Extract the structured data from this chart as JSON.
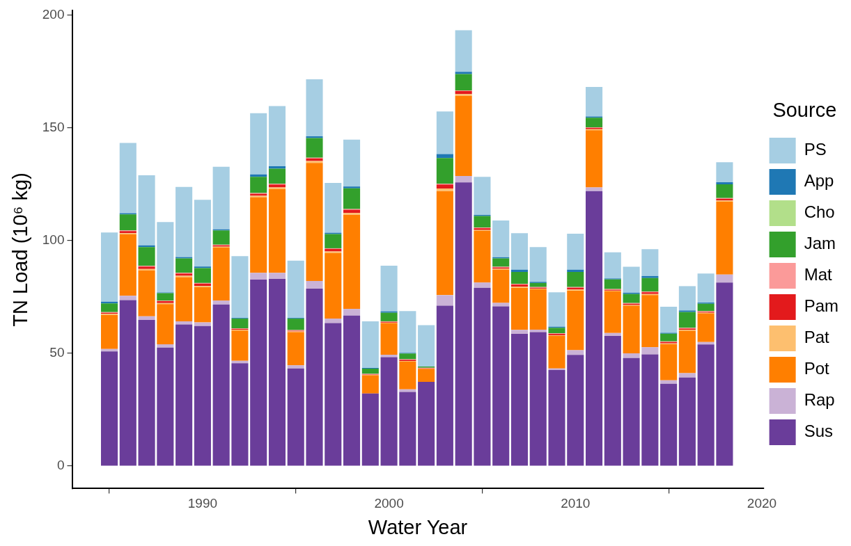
{
  "chart_data": {
    "type": "bar",
    "xlabel": "Water Year",
    "ylabel": "TN Load (10⁶ kg)",
    "legend_title": "Source",
    "legend": "right",
    "stacked": true,
    "x": [
      1985,
      1986,
      1987,
      1988,
      1989,
      1990,
      1991,
      1992,
      1993,
      1994,
      1995,
      1996,
      1997,
      1998,
      1999,
      2000,
      2001,
      2002,
      2003,
      2004,
      2005,
      2006,
      2007,
      2008,
      2009,
      2010,
      2011,
      2012,
      2013,
      2014,
      2015,
      2016,
      2017,
      2018
    ],
    "xlim": [
      1983,
      2020.1
    ],
    "xticks": [
      1990,
      2000,
      2010,
      2020
    ],
    "ylim": [
      -10,
      202
    ],
    "yticks": [
      0,
      50,
      100,
      150,
      200
    ],
    "series": [
      {
        "name": "Sus",
        "color": "#6a3d9a",
        "values": [
          50.8,
          73.6,
          64.8,
          52.5,
          62.8,
          62.1,
          71.7,
          45.6,
          82.7,
          83.0,
          43.3,
          78.7,
          63.4,
          66.7,
          32.2,
          48.3,
          32.9,
          37.3,
          71.1,
          125.8,
          79.1,
          70.8,
          58.6,
          59.4,
          42.6,
          49.3,
          122.0,
          57.7,
          47.9,
          49.5,
          36.5,
          39.3,
          53.9,
          81.4
        ]
      },
      {
        "name": "Rap",
        "color": "#cab2d6",
        "values": [
          1.1,
          1.9,
          1.6,
          1.5,
          1.4,
          1.6,
          1.7,
          1.1,
          3.0,
          2.7,
          1.4,
          3.4,
          2.0,
          3.0,
          null,
          1.1,
          1.1,
          null,
          4.7,
          2.9,
          2.3,
          1.6,
          1.8,
          1.1,
          0.7,
          2.1,
          1.6,
          1.3,
          2.1,
          3.2,
          1.5,
          1.9,
          1.1,
          3.5
        ]
      },
      {
        "name": "Pot",
        "color": "#ff7f00",
        "values": [
          15.1,
          27.3,
          20.4,
          17.8,
          19.6,
          15.7,
          23.5,
          13.4,
          33.6,
          37.2,
          14.7,
          52.4,
          29.1,
          41.8,
          8.1,
          14.0,
          12.3,
          5.8,
          46.2,
          35.5,
          22.9,
          14.8,
          18.7,
          17.9,
          14.4,
          26.4,
          25.4,
          18.5,
          21.1,
          23.1,
          16.1,
          18.8,
          12.7,
          32.4
        ]
      },
      {
        "name": "Pat",
        "color": "#fdbf6f",
        "values": [
          0.5,
          0.5,
          0.6,
          0.5,
          0.6,
          0.5,
          0.4,
          0.3,
          0.6,
          0.7,
          0.3,
          0.8,
          0.7,
          0.8,
          0.1,
          0.2,
          0.3,
          null,
          1.1,
          0.8,
          0.4,
          0.3,
          0.5,
          0.3,
          0.3,
          0.5,
          0.4,
          0.3,
          0.3,
          0.5,
          0.3,
          0.4,
          0.3,
          0.5
        ]
      },
      {
        "name": "Pam",
        "color": "#e31a1c",
        "values": [
          0.5,
          0.9,
          1.1,
          0.8,
          1.0,
          1.0,
          0.6,
          0.4,
          0.9,
          1.3,
          0.3,
          1.2,
          1.1,
          1.4,
          0.2,
          0.3,
          0.5,
          0.2,
          1.8,
          1.3,
          0.8,
          0.6,
          0.9,
          0.4,
          0.6,
          0.8,
          0.6,
          0.4,
          0.6,
          0.8,
          0.6,
          0.6,
          0.4,
          0.8
        ]
      },
      {
        "name": "Mat",
        "color": "#fb9a99",
        "values": [
          0.3,
          0.3,
          0.3,
          0.3,
          0.3,
          0.3,
          0.3,
          0.3,
          0.3,
          0.3,
          0.3,
          0.3,
          0.3,
          0.3,
          0.3,
          0.3,
          0.3,
          0.3,
          0.3,
          0.3,
          0.3,
          0.3,
          0.3,
          0.3,
          0.3,
          0.3,
          0.3,
          0.3,
          0.3,
          0.3,
          0.3,
          0.3,
          0.3,
          0.3
        ]
      },
      {
        "name": "Jam",
        "color": "#33a02c",
        "values": [
          3.8,
          7.1,
          8.3,
          3.3,
          6.4,
          6.6,
          6.3,
          4.3,
          7.2,
          6.7,
          5.1,
          8.7,
          6.3,
          9.2,
          2.3,
          3.8,
          2.5,
          0.5,
          11.4,
          7.3,
          5.1,
          3.7,
          5.3,
          1.8,
          2.4,
          6.7,
          4.2,
          4.3,
          4.0,
          6.0,
          3.4,
          7.0,
          3.3,
          6.1
        ]
      },
      {
        "name": "Cho",
        "color": "#b2df8a",
        "values": [
          null,
          null,
          null,
          null,
          null,
          null,
          null,
          null,
          null,
          null,
          null,
          null,
          null,
          null,
          null,
          null,
          null,
          null,
          null,
          null,
          null,
          null,
          null,
          null,
          null,
          null,
          null,
          null,
          null,
          null,
          null,
          null,
          null,
          null
        ]
      },
      {
        "name": "App",
        "color": "#1f78b4",
        "values": [
          0.8,
          0.6,
          0.8,
          0.3,
          0.6,
          0.7,
          0.5,
          0.3,
          1.1,
          1.1,
          0.3,
          0.8,
          0.6,
          0.8,
          0.3,
          0.6,
          0.3,
          null,
          1.8,
          1.0,
          0.5,
          0.5,
          1.0,
          0.5,
          0.5,
          1.0,
          0.6,
          0.4,
          0.6,
          0.9,
          0.4,
          0.7,
          0.5,
          0.9
        ]
      },
      {
        "name": "PS",
        "color": "#a6cee3",
        "values": [
          30.7,
          31.1,
          31.1,
          31.2,
          31.1,
          29.6,
          27.8,
          27.4,
          27.1,
          26.7,
          25.4,
          25.3,
          22.1,
          20.8,
          20.7,
          20.3,
          18.5,
          18.4,
          18.9,
          18.4,
          16.9,
          16.3,
          16.2,
          15.4,
          15.3,
          16.0,
          13.1,
          11.6,
          11.5,
          11.9,
          11.6,
          10.8,
          12.9,
          8.9
        ]
      }
    ]
  }
}
